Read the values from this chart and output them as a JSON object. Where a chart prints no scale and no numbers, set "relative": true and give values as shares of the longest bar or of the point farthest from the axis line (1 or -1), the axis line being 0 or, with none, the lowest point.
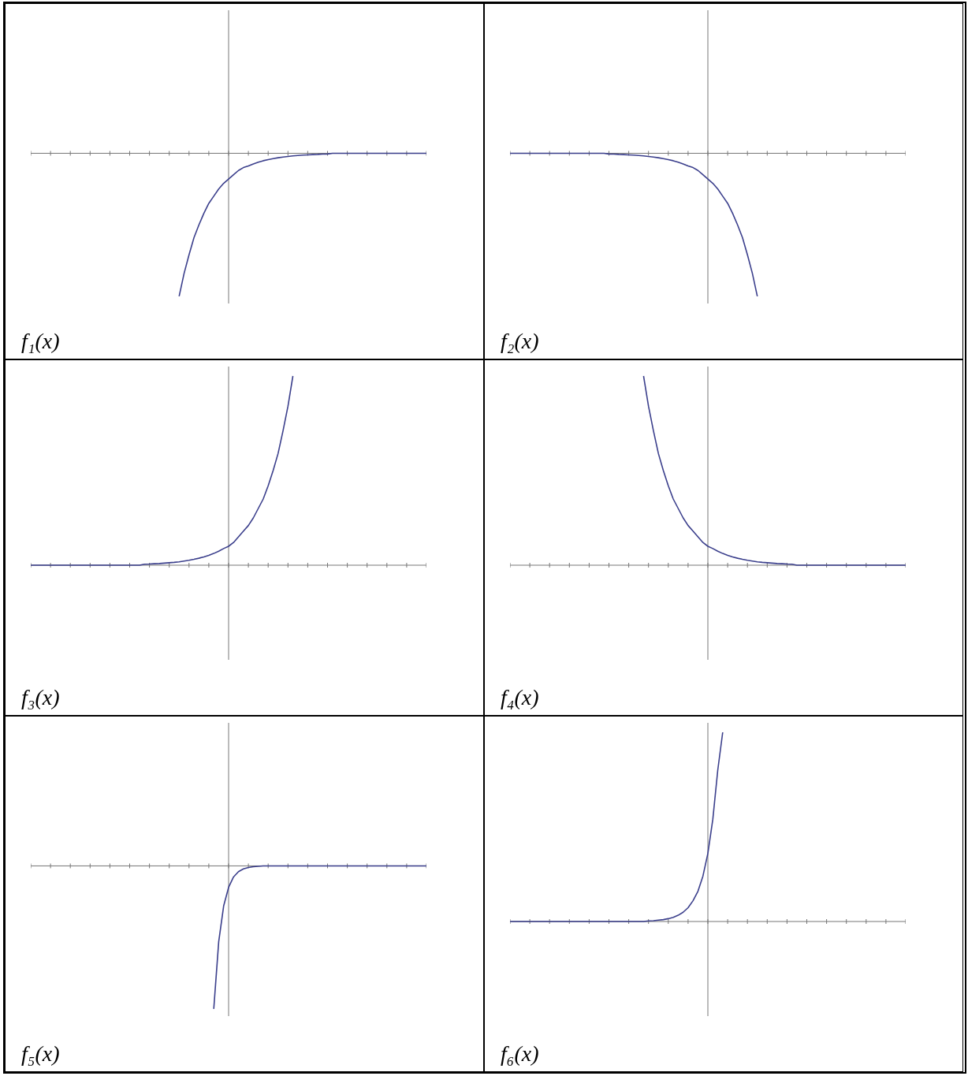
{
  "chart_data": [
    {
      "type": "line",
      "title": "f₁(x)",
      "relative": true,
      "tick_labels": false,
      "color": "#3b3f8c",
      "categories": [
        null,
        null,
        null,
        null,
        null,
        null,
        null,
        null,
        null,
        null,
        null,
        null,
        null,
        null,
        null,
        null,
        null,
        null,
        null,
        null,
        null,
        null,
        null,
        null,
        null,
        null,
        null,
        null,
        null,
        null,
        null,
        null,
        null,
        null,
        null,
        null,
        null,
        null,
        null,
        null,
        null,
        null,
        null,
        null,
        null,
        null,
        null,
        null,
        null,
        null,
        null,
        null,
        null,
        null,
        null,
        null,
        null,
        null,
        null,
        null,
        null,
        null,
        null,
        null,
        null,
        null,
        null,
        null,
        null,
        null,
        null,
        null,
        null,
        null,
        null,
        null,
        null,
        null,
        null,
        null,
        null
      ],
      "values": [
        null,
        null,
        null,
        null,
        null,
        null,
        null,
        null,
        null,
        null,
        null,
        null,
        null,
        null,
        null,
        null,
        null,
        null,
        null,
        null,
        null,
        null,
        null,
        null,
        null,
        null,
        null,
        null,
        null,
        null,
        -1,
        -0.84,
        -0.71,
        -0.59,
        -0.5,
        -0.42,
        -0.35,
        -0.3,
        -0.25,
        -0.21,
        -0.18,
        -0.15,
        -0.12,
        -0.1,
        -0.088,
        -0.074,
        -0.062,
        -0.052,
        -0.044,
        -0.037,
        -0.031,
        -0.026,
        -0.022,
        -0.018,
        -0.015,
        -0.013,
        -0.011,
        -0.009,
        -0.008,
        -0.006,
        -0.005,
        0,
        0,
        0,
        0,
        0,
        0,
        0,
        0,
        0,
        0,
        0,
        0,
        0,
        0,
        0,
        0,
        0,
        0,
        0,
        0
      ]
    },
    {
      "type": "line",
      "title": "f₂(x)",
      "relative": true,
      "tick_labels": false,
      "color": "#3b3f8c",
      "categories": [
        null,
        null,
        null,
        null,
        null,
        null,
        null,
        null,
        null,
        null,
        null,
        null,
        null,
        null,
        null,
        null,
        null,
        null,
        null,
        null,
        null,
        null,
        null,
        null,
        null,
        null,
        null,
        null,
        null,
        null,
        null,
        null,
        null,
        null,
        null,
        null,
        null,
        null,
        null,
        null,
        null,
        null,
        null,
        null,
        null,
        null,
        null,
        null,
        null,
        null,
        null,
        null,
        null,
        null,
        null,
        null,
        null,
        null,
        null,
        null,
        null,
        null,
        null,
        null,
        null,
        null,
        null,
        null,
        null,
        null,
        null,
        null,
        null,
        null,
        null,
        null,
        null,
        null,
        null,
        null,
        null
      ],
      "values": [
        0,
        0,
        0,
        0,
        0,
        0,
        0,
        0,
        0,
        0,
        0,
        0,
        0,
        0,
        0,
        0,
        0,
        0,
        0,
        0,
        -0.005,
        -0.006,
        -0.008,
        -0.009,
        -0.011,
        -0.013,
        -0.015,
        -0.018,
        -0.022,
        -0.026,
        -0.031,
        -0.037,
        -0.044,
        -0.052,
        -0.062,
        -0.074,
        -0.088,
        -0.1,
        -0.12,
        -0.15,
        -0.18,
        -0.21,
        -0.25,
        -0.3,
        -0.35,
        -0.42,
        -0.5,
        -0.59,
        -0.71,
        -0.84,
        -1,
        null,
        null,
        null,
        null,
        null,
        null,
        null,
        null,
        null,
        null,
        null,
        null,
        null,
        null,
        null,
        null,
        null,
        null,
        null,
        null,
        null,
        null,
        null,
        null,
        null,
        null,
        null,
        null,
        null,
        null
      ]
    },
    {
      "type": "line",
      "title": "f₃(x)",
      "relative": true,
      "tick_labels": false,
      "color": "#3b3f8c",
      "categories": [
        null,
        null,
        null,
        null,
        null,
        null,
        null,
        null,
        null,
        null,
        null,
        null,
        null,
        null,
        null,
        null,
        null,
        null,
        null,
        null,
        null,
        null,
        null,
        null,
        null,
        null,
        null,
        null,
        null,
        null,
        null,
        null,
        null,
        null,
        null,
        null,
        null,
        null,
        null,
        null,
        null,
        null,
        null,
        null,
        null,
        null,
        null,
        null,
        null,
        null,
        null,
        null,
        null,
        null,
        null,
        null,
        null,
        null,
        null,
        null,
        null,
        null,
        null,
        null,
        null,
        null,
        null,
        null,
        null,
        null,
        null,
        null,
        null,
        null,
        null,
        null,
        null,
        null,
        null,
        null,
        null
      ],
      "values": [
        0,
        0,
        0,
        0,
        0,
        0,
        0,
        0,
        0,
        0,
        0,
        0,
        0,
        0,
        0,
        0,
        0,
        0,
        0,
        0,
        0,
        0,
        0,
        0.005,
        0.006,
        0.008,
        0.009,
        0.011,
        0.013,
        0.015,
        0.018,
        0.022,
        0.026,
        0.031,
        0.037,
        0.044,
        0.052,
        0.062,
        0.074,
        0.088,
        0.1,
        0.12,
        0.15,
        0.18,
        0.21,
        0.25,
        0.3,
        0.35,
        0.42,
        0.5,
        0.59,
        0.71,
        0.84,
        1,
        null,
        null,
        null,
        null,
        null,
        null,
        null,
        null,
        null,
        null,
        null,
        null,
        null,
        null,
        null,
        null,
        null,
        null,
        null,
        null,
        null,
        null,
        null,
        null,
        null,
        null,
        null
      ]
    },
    {
      "type": "line",
      "title": "f₄(x)",
      "relative": true,
      "tick_labels": false,
      "color": "#3b3f8c",
      "categories": [
        null,
        null,
        null,
        null,
        null,
        null,
        null,
        null,
        null,
        null,
        null,
        null,
        null,
        null,
        null,
        null,
        null,
        null,
        null,
        null,
        null,
        null,
        null,
        null,
        null,
        null,
        null,
        null,
        null,
        null,
        null,
        null,
        null,
        null,
        null,
        null,
        null,
        null,
        null,
        null,
        null,
        null,
        null,
        null,
        null,
        null,
        null,
        null,
        null,
        null,
        null,
        null,
        null,
        null,
        null,
        null,
        null,
        null,
        null,
        null,
        null,
        null,
        null,
        null,
        null,
        null,
        null,
        null,
        null,
        null,
        null,
        null,
        null,
        null,
        null,
        null,
        null,
        null,
        null,
        null,
        null
      ],
      "values": [
        null,
        null,
        null,
        null,
        null,
        null,
        null,
        null,
        null,
        null,
        null,
        null,
        null,
        null,
        null,
        null,
        null,
        null,
        null,
        null,
        null,
        null,
        null,
        null,
        null,
        null,
        null,
        1,
        0.84,
        0.71,
        0.59,
        0.5,
        0.42,
        0.35,
        0.3,
        0.25,
        0.21,
        0.18,
        0.15,
        0.12,
        0.1,
        0.088,
        0.074,
        0.062,
        0.052,
        0.044,
        0.037,
        0.031,
        0.026,
        0.022,
        0.018,
        0.015,
        0.013,
        0.011,
        0.009,
        0.008,
        0.006,
        0.005,
        0,
        0,
        0,
        0,
        0,
        0,
        0,
        0,
        0,
        0,
        0,
        0,
        0,
        0,
        0,
        0,
        0,
        0,
        0,
        0,
        0,
        0,
        0
      ]
    },
    {
      "type": "line",
      "title": "f₅(x)",
      "relative": true,
      "tick_labels": false,
      "color": "#3b3f8c",
      "categories": [
        null,
        null,
        null,
        null,
        null,
        null,
        null,
        null,
        null,
        null,
        null,
        null,
        null,
        null,
        null,
        null,
        null,
        null,
        null,
        null,
        null,
        null,
        null,
        null,
        null,
        null,
        null,
        null,
        null,
        null,
        null,
        null,
        null,
        null,
        null,
        null,
        null,
        null,
        null,
        null,
        null,
        null,
        null,
        null,
        null,
        null,
        null,
        null,
        null,
        null,
        null,
        null,
        null,
        null,
        null,
        null,
        null,
        null,
        null,
        null,
        null,
        null,
        null,
        null,
        null,
        null,
        null,
        null,
        null,
        null,
        null,
        null,
        null,
        null,
        null,
        null,
        null,
        null,
        null,
        null,
        null
      ],
      "values": [
        null,
        null,
        null,
        null,
        null,
        null,
        null,
        null,
        null,
        null,
        null,
        null,
        null,
        null,
        null,
        null,
        null,
        null,
        null,
        null,
        null,
        null,
        null,
        null,
        null,
        null,
        null,
        null,
        null,
        null,
        null,
        null,
        null,
        null,
        null,
        null,
        null,
        -1,
        -0.53,
        -0.28,
        -0.15,
        -0.077,
        -0.04,
        -0.021,
        -0.011,
        -0.006,
        -0.003,
        0,
        0,
        0,
        0,
        0,
        0,
        0,
        0,
        0,
        0,
        0,
        0,
        0,
        0,
        0,
        0,
        0,
        0,
        0,
        0,
        0,
        0,
        0,
        0,
        0,
        0,
        0,
        0,
        0,
        0,
        0,
        0,
        0,
        0
      ]
    },
    {
      "type": "line",
      "title": "f₆(x)",
      "relative": true,
      "tick_labels": false,
      "color": "#3b3f8c",
      "categories": [
        null,
        null,
        null,
        null,
        null,
        null,
        null,
        null,
        null,
        null,
        null,
        null,
        null,
        null,
        null,
        null,
        null,
        null,
        null,
        null,
        null,
        null,
        null,
        null,
        null,
        null,
        null,
        null,
        null,
        null,
        null,
        null,
        null,
        null,
        null,
        null,
        null,
        null,
        null,
        null,
        null,
        null,
        null,
        null,
        null,
        null,
        null,
        null,
        null,
        null,
        null,
        null,
        null,
        null,
        null,
        null,
        null,
        null,
        null,
        null,
        null,
        null,
        null,
        null,
        null,
        null,
        null,
        null,
        null,
        null,
        null,
        null,
        null,
        null,
        null,
        null,
        null,
        null,
        null,
        null,
        null
      ],
      "values": [
        0,
        0,
        0,
        0,
        0,
        0,
        0,
        0,
        0,
        0,
        0,
        0,
        0,
        0,
        0,
        0,
        0,
        0,
        0,
        0,
        0,
        0,
        0,
        0,
        0,
        0,
        0,
        0,
        0.003,
        0.004,
        0.007,
        0.01,
        0.015,
        0.022,
        0.033,
        0.049,
        0.073,
        0.11,
        0.16,
        0.24,
        0.36,
        0.54,
        0.8,
        1,
        null,
        null,
        null,
        null,
        null,
        null,
        null,
        null,
        null,
        null,
        null,
        null,
        null,
        null,
        null,
        null,
        null,
        null,
        null,
        null,
        null,
        null,
        null,
        null,
        null,
        null,
        null,
        null,
        null,
        null,
        null,
        null,
        null,
        null,
        null,
        null,
        null
      ]
    }
  ]
}
